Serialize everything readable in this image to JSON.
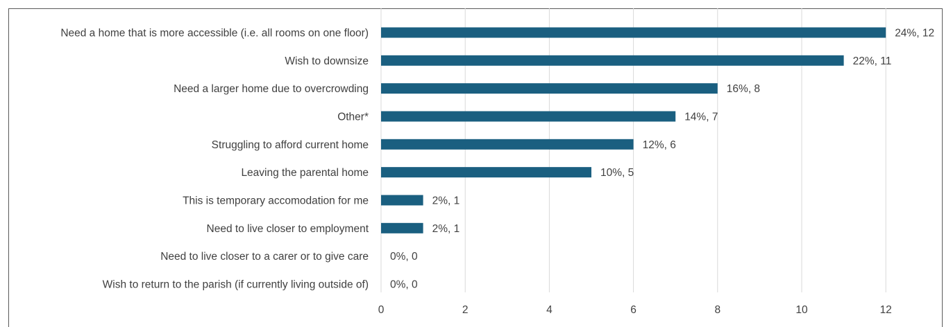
{
  "chart_data": {
    "type": "bar",
    "orientation": "horizontal",
    "categories": [
      "Need a home that is more accessible (i.e. all rooms on one floor)",
      "Wish to downsize",
      "Need a larger home due to overcrowding",
      "Other*",
      "Struggling to afford current home",
      "Leaving the parental home",
      "This is temporary accomodation for me",
      "Need to live closer to employment",
      "Need to live closer to a carer or to give care",
      "Wish to return to the parish (if currently living outside of)"
    ],
    "values": [
      12,
      11,
      8,
      7,
      6,
      5,
      1,
      1,
      0,
      0
    ],
    "data_labels": [
      "24%, 12",
      "22%, 11",
      "16%, 8",
      "14%, 7",
      "12%, 6",
      "10%, 5",
      "2%, 1",
      "2%, 1",
      "0%, 0",
      "0%, 0"
    ],
    "x_ticks": [
      "0",
      "2",
      "4",
      "6",
      "8",
      "10",
      "12"
    ],
    "xlim": [
      0,
      13
    ],
    "title": "",
    "xlabel": "",
    "ylabel": "",
    "grid": "vertical",
    "legend": "none",
    "bar_color": "#1a5f80"
  }
}
